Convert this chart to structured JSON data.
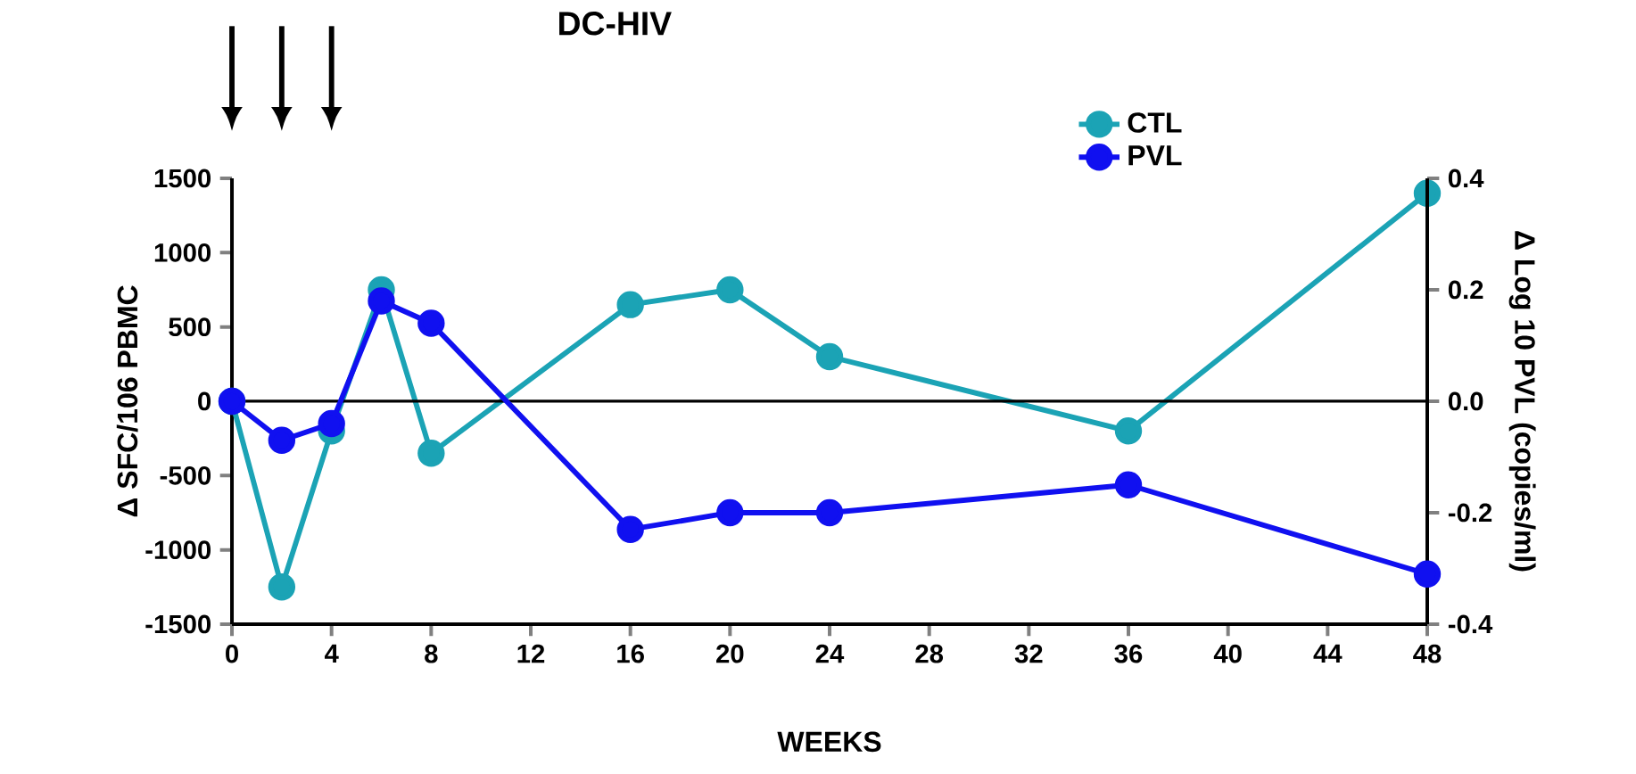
{
  "chart_data": {
    "type": "line",
    "title": "DC-HIV",
    "xlabel": "WEEKS",
    "ylabel": "Δ SFC/106 PBMC",
    "y2label": "Δ Log 10 PVL (copies/ml)",
    "x": [
      0,
      2,
      4,
      6,
      8,
      16,
      20,
      24,
      36,
      48
    ],
    "series": [
      {
        "name": "CTL",
        "color": "#1ba3b5",
        "values": [
          0,
          -1250,
          -200,
          750,
          -350,
          650,
          750,
          300,
          -200,
          1400
        ]
      },
      {
        "name": "PVL",
        "color": "#1010f0",
        "axis": "y2",
        "values": [
          0,
          -0.07,
          -0.04,
          0.18,
          0.14,
          -0.23,
          -0.2,
          -0.2,
          -0.15,
          -0.31
        ]
      }
    ],
    "xlim": [
      0,
      48
    ],
    "xticks": [
      0,
      4,
      8,
      12,
      16,
      20,
      24,
      28,
      32,
      36,
      40,
      44,
      48
    ],
    "ylim": [
      -1500,
      1500
    ],
    "yticks": [
      -1500,
      -1000,
      -500,
      0,
      500,
      1000,
      1500
    ],
    "y2lim": [
      -0.4,
      0.4
    ],
    "y2ticks": [
      -0.4,
      -0.2,
      {
        "value": 0,
        "label": "0.0"
      },
      0.2,
      0.4
    ],
    "ref_lines": [
      {
        "axis": "y",
        "value": 0,
        "color": "#000000"
      }
    ],
    "legend": "top right",
    "marker": "circle",
    "line_style": "solid"
  }
}
